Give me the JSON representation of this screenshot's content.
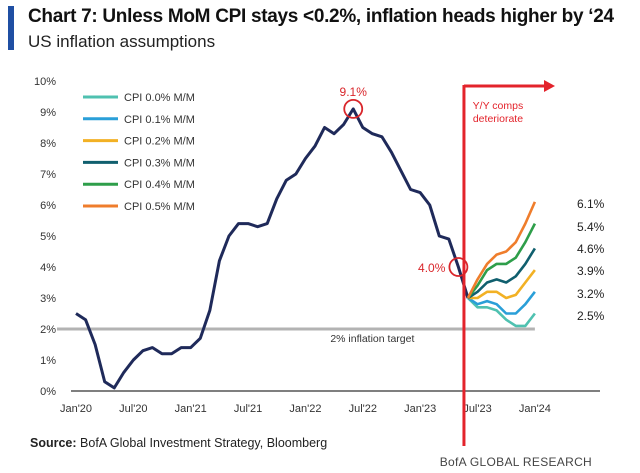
{
  "header": {
    "title": "Chart 7: Unless MoM CPI stays <0.2%, inflation heads higher by ‘24",
    "subtitle": "US inflation assumptions"
  },
  "footer": {
    "source_label": "Source:",
    "source_text": "BofA Global Investment Strategy, Bloomberg",
    "brand": "BofA GLOBAL RESEARCH"
  },
  "chart_data": {
    "type": "line",
    "title": "Chart 7: Unless MoM CPI stays <0.2%, inflation heads higher by ‘24",
    "subtitle": "US inflation assumptions",
    "ylim": [
      0,
      10
    ],
    "yticks": [
      "0%",
      "1%",
      "2%",
      "3%",
      "4%",
      "5%",
      "6%",
      "7%",
      "8%",
      "9%",
      "10%"
    ],
    "xticks": [
      "Jan'20",
      "Jul'20",
      "Jan'21",
      "Jul'21",
      "Jan'22",
      "Jul'22",
      "Jan'23",
      "Jul'23",
      "Jan'24"
    ],
    "xrange": [
      "2020-01",
      "2024-01"
    ],
    "grid": false,
    "legend_placement": "top-left",
    "actual": {
      "color": "#1f2a5a",
      "start": "2020-01",
      "values": [
        2.5,
        2.3,
        1.5,
        0.3,
        0.1,
        0.6,
        1.0,
        1.3,
        1.4,
        1.2,
        1.2,
        1.4,
        1.4,
        1.7,
        2.6,
        4.2,
        5.0,
        5.4,
        5.4,
        5.3,
        5.4,
        6.2,
        6.8,
        7.0,
        7.5,
        7.9,
        8.5,
        8.3,
        8.6,
        9.1,
        8.5,
        8.3,
        8.2,
        7.7,
        7.1,
        6.5,
        6.4,
        6.0,
        5.0,
        4.9,
        4.0,
        3.0
      ]
    },
    "projections_start": "2023-06",
    "series": [
      {
        "name": "CPI 0.0% M/M",
        "color": "#4fc1b0",
        "values": [
          3.0,
          2.7,
          2.7,
          2.6,
          2.3,
          2.1,
          2.1,
          2.5
        ],
        "end_label": "2.5%"
      },
      {
        "name": "CPI 0.1% M/M",
        "color": "#2a9fd8",
        "values": [
          3.0,
          2.8,
          2.9,
          2.8,
          2.5,
          2.5,
          2.8,
          3.2
        ],
        "end_label": "3.2%"
      },
      {
        "name": "CPI 0.2% M/M",
        "color": "#f2b124",
        "values": [
          3.0,
          3.0,
          3.2,
          3.2,
          3.0,
          3.1,
          3.5,
          3.9
        ],
        "end_label": "3.9%"
      },
      {
        "name": "CPI 0.3% M/M",
        "color": "#105f6e",
        "values": [
          3.0,
          3.2,
          3.5,
          3.6,
          3.5,
          3.7,
          4.1,
          4.6
        ],
        "end_label": "4.6%"
      },
      {
        "name": "CPI 0.4% M/M",
        "color": "#2e9e4a",
        "values": [
          3.0,
          3.4,
          3.9,
          4.1,
          4.1,
          4.3,
          4.8,
          5.4
        ],
        "end_label": "5.4%"
      },
      {
        "name": "CPI 0.5% M/M",
        "color": "#ef7d2c",
        "values": [
          3.0,
          3.6,
          4.1,
          4.4,
          4.5,
          4.8,
          5.4,
          6.1
        ],
        "end_label": "6.1%"
      }
    ],
    "target": {
      "value": 2,
      "label": "2% inflation target",
      "color": "#b3b3b3"
    },
    "annotations": [
      {
        "label": "9.1%",
        "date": "2022-06",
        "value": 9.1,
        "color": "#d9262b"
      },
      {
        "label": "4.0%",
        "date": "2023-05",
        "value": 4.0,
        "color": "#d9262b"
      }
    ],
    "divider": {
      "date": "2023-06",
      "label_line1": "Y/Y comps",
      "label_line2": "deteriorate",
      "color": "#e3232b"
    }
  }
}
